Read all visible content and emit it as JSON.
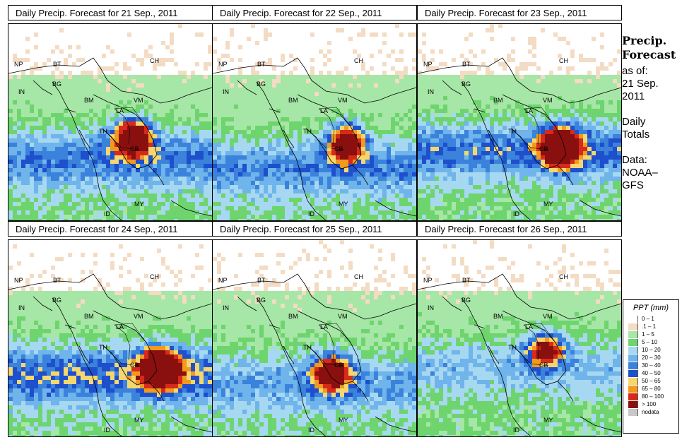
{
  "panels": [
    {
      "title": "Daily Precip. Forecast for  21 Sep., 2011",
      "intensity": 1.0,
      "variant": 1
    },
    {
      "title": "Daily Precip. Forecast for  22 Sep., 2011",
      "intensity": 0.9,
      "variant": 2
    },
    {
      "title": "Daily Precip. Forecast for  23 Sep., 2011",
      "intensity": 1.1,
      "variant": 3
    },
    {
      "title": "Daily Precip. Forecast for  24 Sep., 2011",
      "intensity": 1.2,
      "variant": 4
    },
    {
      "title": "Daily Precip. Forecast for  25 Sep., 2011",
      "intensity": 0.8,
      "variant": 5
    },
    {
      "title": "Daily Precip. Forecast for  26 Sep., 2011",
      "intensity": 0.7,
      "variant": 6
    }
  ],
  "country_labels": [
    "CH",
    "NP",
    "BT",
    "IN",
    "BG",
    "BM",
    "VM",
    "LA",
    "TH",
    "CB",
    "MY",
    "ID"
  ],
  "side": {
    "title_line1": "Precip.",
    "title_line2": "Forecast",
    "asof_line1": "as of:",
    "asof_line2": "21 Sep.",
    "asof_line3": "2011",
    "type_line1": "Daily",
    "type_line2": "Totals",
    "data_line1": "Data:",
    "data_line2": "NOAA–",
    "data_line3": "GFS"
  },
  "legend": {
    "title": "PPT (mm)",
    "items": [
      {
        "label": "0 – 1",
        "color": "#ffffff"
      },
      {
        "label": ".1 – 1",
        "color": "#f3dcc3"
      },
      {
        "label": "1 – 5",
        "color": "#a6e6a6"
      },
      {
        "label": "5 – 10",
        "color": "#6ed46e"
      },
      {
        "label": "10 – 20",
        "color": "#a7d8f2"
      },
      {
        "label": "20 – 30",
        "color": "#6fb4ea"
      },
      {
        "label": "30 – 40",
        "color": "#3b82dc"
      },
      {
        "label": "40 – 50",
        "color": "#1e4fcc"
      },
      {
        "label": "50 – 65",
        "color": "#f5d76e"
      },
      {
        "label": "65 – 80",
        "color": "#f29a1e"
      },
      {
        "label": "80 – 100",
        "color": "#d62a1a"
      },
      {
        "label": "> 100",
        "color": "#8a1010"
      },
      {
        "label": "nodata",
        "color": "#c8c8c8"
      }
    ]
  }
}
